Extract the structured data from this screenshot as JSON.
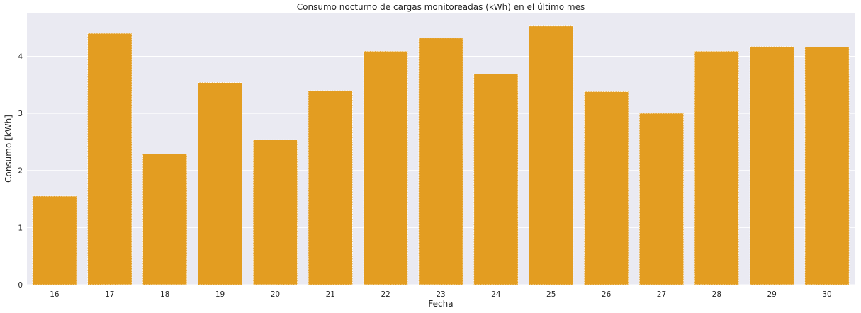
{
  "chart_data": {
    "type": "bar",
    "title": "Consumo nocturno de cargas monitoreadas (kWh) en el último mes",
    "xlabel": "Fecha",
    "ylabel": "Consumo [kWh]",
    "categories": [
      "16",
      "17",
      "18",
      "19",
      "20",
      "21",
      "22",
      "23",
      "24",
      "25",
      "26",
      "27",
      "28",
      "29",
      "30"
    ],
    "values": [
      1.55,
      4.4,
      2.29,
      3.54,
      2.54,
      3.4,
      4.09,
      4.32,
      3.69,
      4.53,
      3.38,
      3.0,
      4.09,
      4.17,
      4.16
    ],
    "yticks": [
      "0",
      "1",
      "2",
      "3",
      "4"
    ],
    "ylim": [
      0,
      4.75
    ],
    "grid": true,
    "bar_color": "#e39d21",
    "background_color": "#eaeaf2"
  }
}
